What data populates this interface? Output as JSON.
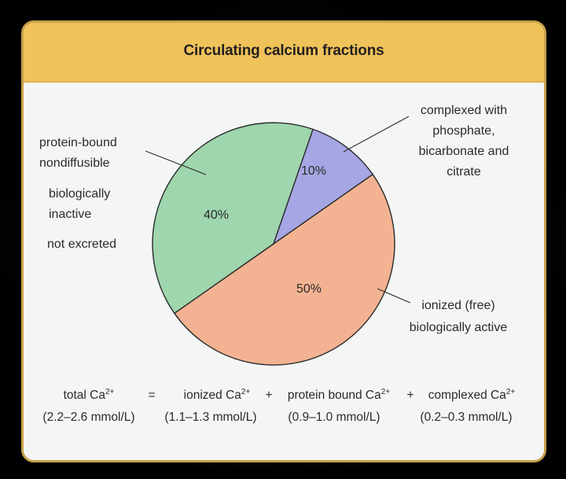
{
  "chart_data": {
    "type": "pie",
    "title": "Circulating calcium fractions",
    "slices": [
      {
        "label": "ionized (free)",
        "value": 50,
        "value_label": "50%",
        "color": "#f3b392"
      },
      {
        "label": "protein-bound",
        "value": 40,
        "value_label": "40%",
        "color": "#9fd6ae"
      },
      {
        "label": "complexed",
        "value": 10,
        "value_label": "10%",
        "color": "#a6a6e4"
      }
    ]
  },
  "left_labels": [
    "protein-bound",
    "nondiffusible",
    "biologically",
    "inactive",
    "not excreted"
  ],
  "top_right_labels": [
    "complexed with",
    "phosphate,",
    "bicarbonate and",
    "citrate"
  ],
  "bottom_right_labels": [
    "ionized (free)",
    "biologically active"
  ],
  "equation": {
    "total": "total Ca",
    "total_range": "(2.2–2.6 mmol/L)",
    "equals": "=",
    "ionized": "ionized Ca",
    "ionized_range": "(1.1–1.3 mmol/L)",
    "plus1": "+",
    "protein": "protein bound Ca",
    "protein_range": "(0.9–1.0 mmol/L)",
    "plus2": "+",
    "complexed": "complexed Ca",
    "complexed_range": "(0.2–0.3 mmol/L)",
    "superscript": "2+"
  },
  "colors": {
    "banner": "#f0c35a",
    "border": "#c9a24a",
    "background": "#f4f6f6"
  }
}
